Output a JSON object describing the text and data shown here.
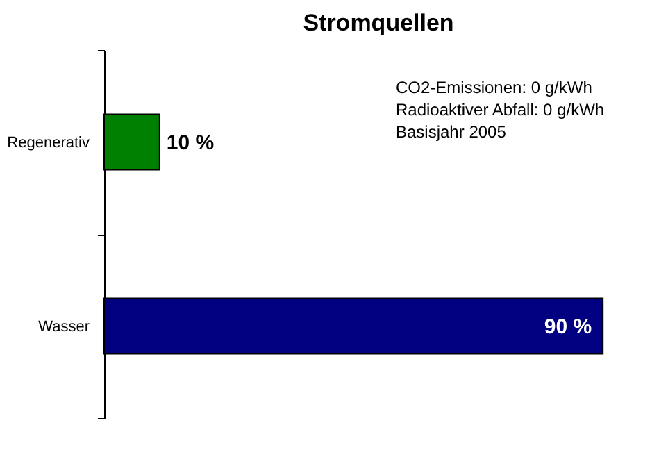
{
  "chart_data": {
    "type": "bar",
    "orientation": "horizontal",
    "title": "Stromquellen",
    "categories": [
      "Regenerativ",
      "Wasser"
    ],
    "values": [
      10,
      90
    ],
    "colors": [
      "#008000",
      "#000080"
    ],
    "value_labels": [
      "10 %",
      "90 %"
    ],
    "annotations": [
      "CO2-Emissionen: 0 g/kWh",
      "Radioaktiver Abfall: 0 g/kWh",
      "Basisjahr 2005"
    ],
    "grid": false
  }
}
